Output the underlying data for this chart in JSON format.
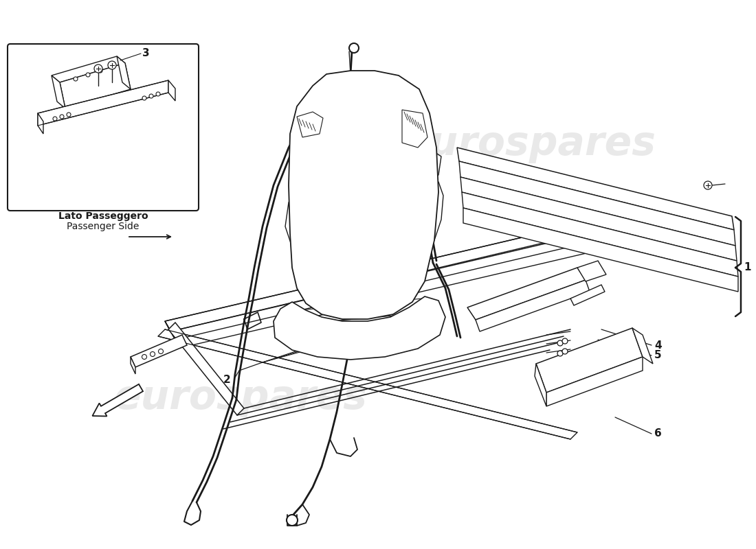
{
  "bg_color": "#ffffff",
  "line_color": "#1a1a1a",
  "wm_color1": "#d0d0d0",
  "wm_color2": "#d0d0d0",
  "wm_text": "eurospares",
  "inset_label1": "Lato Passeggero",
  "inset_label2": "Passenger Side",
  "part_labels": {
    "1": "1",
    "2": "2",
    "3": "3",
    "4": "4",
    "5": "5",
    "6": "6"
  },
  "figsize": [
    11.0,
    8.0
  ],
  "dpi": 100
}
